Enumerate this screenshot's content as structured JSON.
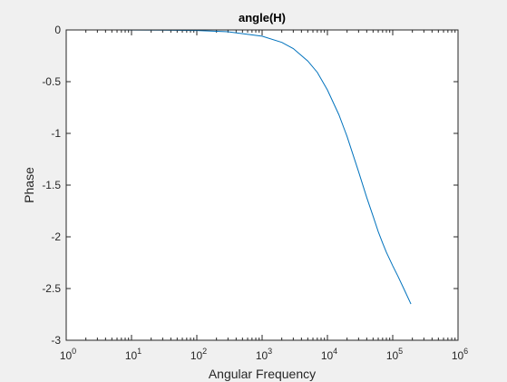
{
  "chart_data": {
    "type": "line",
    "title": "angle(H)",
    "xlabel": "Angular Frequency",
    "ylabel": "Phase",
    "xscale": "log",
    "xlim": [
      1,
      1000000
    ],
    "ylim": [
      -3,
      0
    ],
    "grid": false,
    "color": "#0072bd",
    "xtick_base": "10",
    "xtick_exponents": [
      "0",
      "1",
      "2",
      "3",
      "4",
      "5",
      "6"
    ],
    "yticks": [
      "0",
      "-0.5",
      "-1",
      "-1.5",
      "-2",
      "-2.5",
      "-3"
    ],
    "series": [
      {
        "x": [
          6,
          10,
          30,
          100,
          300,
          1000,
          2000,
          3000,
          5000,
          7000,
          10000,
          15000,
          20000,
          30000,
          40000,
          50000,
          60000,
          70000,
          80000,
          100000,
          120000,
          150000,
          190000
        ],
        "y": [
          -0.0004,
          -0.0006,
          -0.002,
          -0.006,
          -0.018,
          -0.06,
          -0.12,
          -0.18,
          -0.3,
          -0.41,
          -0.58,
          -0.82,
          -1.03,
          -1.37,
          -1.62,
          -1.8,
          -1.95,
          -2.06,
          -2.15,
          -2.28,
          -2.38,
          -2.51,
          -2.65
        ]
      }
    ]
  }
}
